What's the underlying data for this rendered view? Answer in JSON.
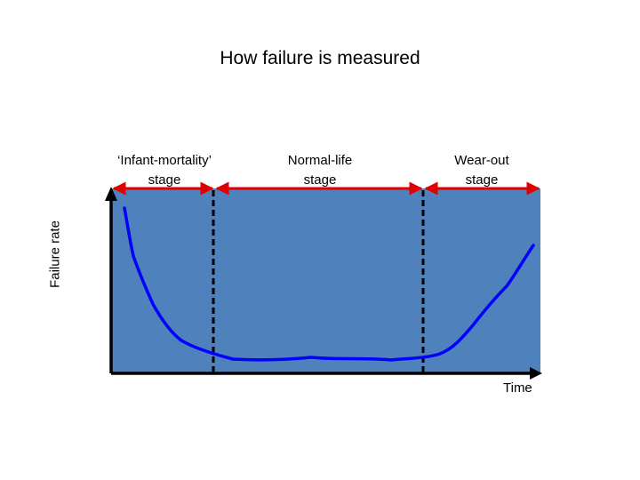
{
  "title": "How failure is measured",
  "stages": [
    {
      "label": "‘Infant-mortality’\nstage"
    },
    {
      "label": "Normal-life\nstage"
    },
    {
      "label": "Wear-out\nstage"
    }
  ],
  "axes": {
    "y_label": "Failure rate",
    "x_label": "Time"
  },
  "colors": {
    "plot_background": "#4f81bd",
    "curve": "#0000ff",
    "arrows": "#e00000",
    "axes": "#000000",
    "dividers": "#000000"
  }
}
